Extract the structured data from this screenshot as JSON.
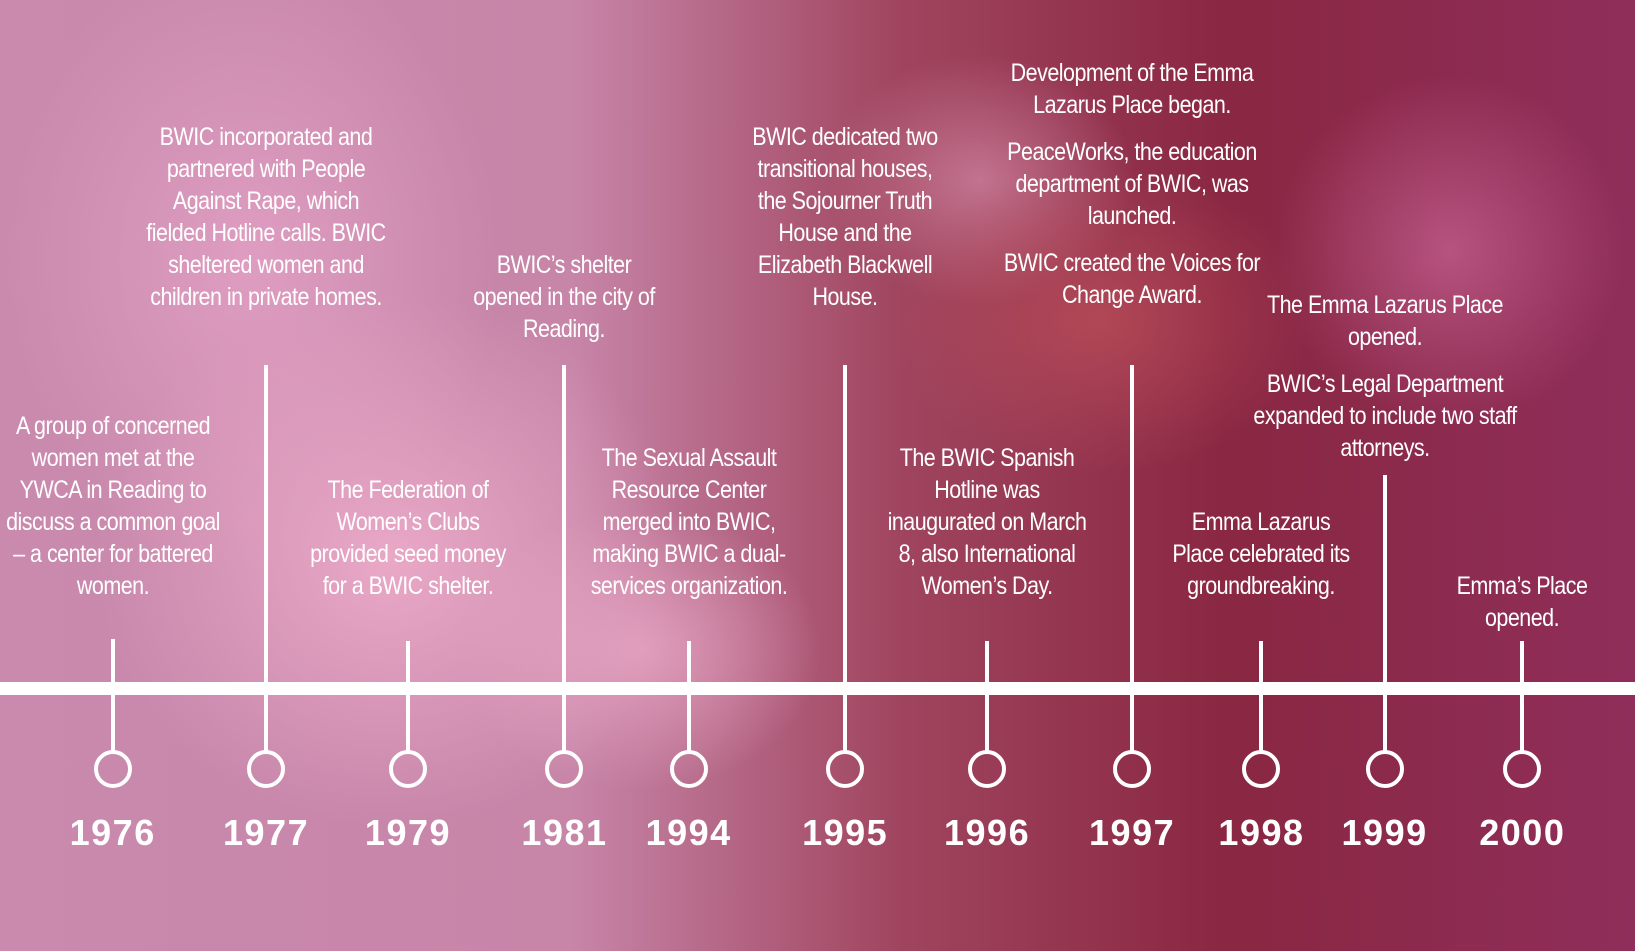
{
  "timeline": {
    "events": [
      {
        "year": "1976",
        "paragraphs": [
          "A group of concerned women met at the YWCA in Reading to discuss a common goal – a center for battered women."
        ]
      },
      {
        "year": "1977",
        "paragraphs": [
          "BWIC incorporated and partnered with People Against Rape, which fielded Hotline calls. BWIC sheltered women and children in private homes."
        ]
      },
      {
        "year": "1979",
        "paragraphs": [
          "The Federation of Women’s Clubs provided seed money for a BWIC shelter."
        ]
      },
      {
        "year": "1981",
        "paragraphs": [
          "BWIC’s shelter opened in the city of Reading."
        ]
      },
      {
        "year": "1994",
        "paragraphs": [
          "The Sexual Assault Resource Center merged into BWIC, making BWIC a dual-services organization."
        ]
      },
      {
        "year": "1995",
        "paragraphs": [
          "BWIC dedicated two transitional houses, the Sojourner Truth House and the Elizabeth Blackwell House."
        ]
      },
      {
        "year": "1996",
        "paragraphs": [
          "The BWIC Spanish Hotline was inaugurated on March 8, also International Women’s Day."
        ]
      },
      {
        "year": "1997",
        "paragraphs": [
          "Development of the Emma Lazarus Place began.",
          "PeaceWorks, the education department of BWIC, was launched.",
          "BWIC created the Voices for Change Award."
        ]
      },
      {
        "year": "1998",
        "paragraphs": [
          "Emma Lazarus Place celebrated its groundbreaking."
        ]
      },
      {
        "year": "1999",
        "paragraphs": [
          "The Emma Lazarus Place opened.",
          "BWIC’s Legal Department expanded to include two staff attorneys."
        ]
      },
      {
        "year": "2000",
        "paragraphs": [
          "Emma’s Place opened."
        ]
      }
    ]
  }
}
